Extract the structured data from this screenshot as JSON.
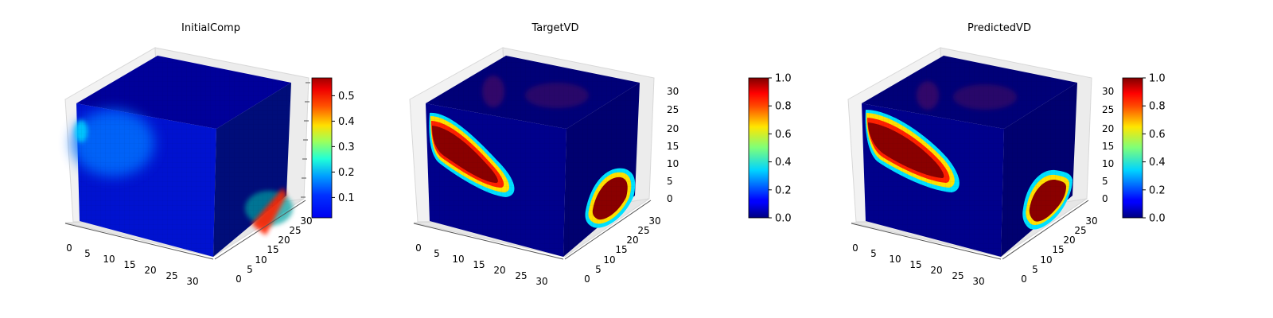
{
  "chart_data": [
    {
      "type": "heatmap",
      "title": "InitialComp",
      "x_ticks": [
        "0",
        "5",
        "10",
        "15",
        "20",
        "25",
        "30"
      ],
      "y_ticks": [
        "0",
        "5",
        "10",
        "15",
        "20",
        "25",
        "30"
      ],
      "z_ticks": [],
      "xlim": [
        0,
        32
      ],
      "ylim": [
        0,
        32
      ],
      "zlim": [
        0,
        32
      ],
      "colormap": "jet",
      "colorbar": {
        "min": 0.02,
        "max": 0.57,
        "ticks": [
          {
            "value": 0.1,
            "label": "0.1"
          },
          {
            "value": 0.2,
            "label": "0.2"
          },
          {
            "value": 0.3,
            "label": "0.3"
          },
          {
            "value": 0.4,
            "label": "0.4"
          },
          {
            "value": 0.5,
            "label": "0.5"
          }
        ]
      }
    },
    {
      "type": "heatmap",
      "title": "TargetVD",
      "x_ticks": [
        "0",
        "5",
        "10",
        "15",
        "20",
        "25",
        "30"
      ],
      "y_ticks": [
        "0",
        "5",
        "10",
        "15",
        "20",
        "25",
        "30"
      ],
      "z_ticks": [
        "0",
        "5",
        "10",
        "15",
        "20",
        "25",
        "30"
      ],
      "xlim": [
        0,
        32
      ],
      "ylim": [
        0,
        32
      ],
      "zlim": [
        0,
        32
      ],
      "colormap": "jet",
      "colorbar": {
        "min": 0.0,
        "max": 1.0,
        "ticks": [
          {
            "value": 0.0,
            "label": "0.0"
          },
          {
            "value": 0.2,
            "label": "0.2"
          },
          {
            "value": 0.4,
            "label": "0.4"
          },
          {
            "value": 0.6,
            "label": "0.6"
          },
          {
            "value": 0.8,
            "label": "0.8"
          },
          {
            "value": 1.0,
            "label": "1.0"
          }
        ]
      }
    },
    {
      "type": "heatmap",
      "title": "PredictedVD",
      "x_ticks": [
        "0",
        "5",
        "10",
        "15",
        "20",
        "25",
        "30"
      ],
      "y_ticks": [
        "0",
        "5",
        "10",
        "15",
        "20",
        "25",
        "30"
      ],
      "z_ticks": [
        "0",
        "5",
        "10",
        "15",
        "20",
        "25",
        "30"
      ],
      "xlim": [
        0,
        32
      ],
      "ylim": [
        0,
        32
      ],
      "zlim": [
        0,
        32
      ],
      "colormap": "jet",
      "colorbar": {
        "min": 0.0,
        "max": 1.0,
        "ticks": [
          {
            "value": 0.0,
            "label": "0.0"
          },
          {
            "value": 0.2,
            "label": "0.2"
          },
          {
            "value": 0.4,
            "label": "0.4"
          },
          {
            "value": 0.6,
            "label": "0.6"
          },
          {
            "value": 0.8,
            "label": "0.8"
          },
          {
            "value": 1.0,
            "label": "1.0"
          }
        ]
      }
    }
  ]
}
